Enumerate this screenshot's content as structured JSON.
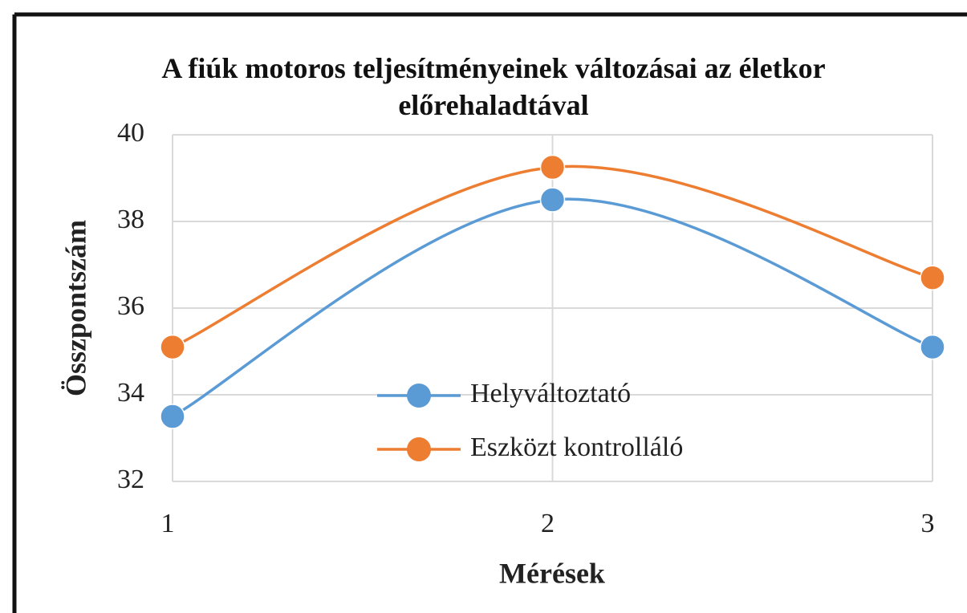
{
  "chart_data": {
    "type": "line",
    "title": "A fiúk motoros teljesítményeinek változásai az életkor előrehaladtával",
    "xlabel": "Mérések",
    "ylabel": "Összpontszám",
    "x": [
      1,
      2,
      3
    ],
    "xlim": [
      1,
      3
    ],
    "xticks": [
      1,
      2,
      3
    ],
    "ylim": [
      32,
      40
    ],
    "yticks": [
      32,
      34,
      36,
      38,
      40
    ],
    "grid": true,
    "smooth": true,
    "legend": "lower center",
    "series": [
      {
        "name": "Helyváltoztató",
        "color": "#5b9bd5",
        "values": [
          33.5,
          38.5,
          35.1
        ]
      },
      {
        "name": "Eszközt kontrolláló",
        "color": "#ed7d31",
        "values": [
          35.1,
          39.25,
          36.7
        ]
      }
    ]
  }
}
